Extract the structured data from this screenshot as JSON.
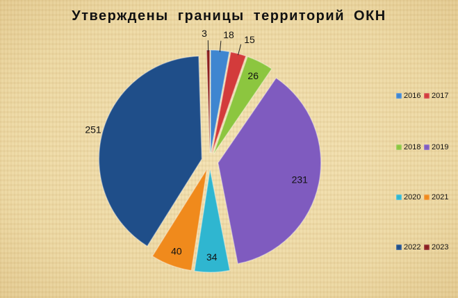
{
  "chart_data": {
    "type": "pie",
    "title": "Утверждены границы территорий ОКН",
    "categories": [
      "2016",
      "2017",
      "2018",
      "2019",
      "2020",
      "2021",
      "2022",
      "2023"
    ],
    "values": [
      18,
      15,
      26,
      231,
      34,
      40,
      251,
      3
    ],
    "colors": [
      "#3f86d0",
      "#d33b3b",
      "#8cc63f",
      "#7f5bbf",
      "#2fb6d0",
      "#f08a1c",
      "#1f4e89",
      "#8b1e1e"
    ],
    "legend_position": "right",
    "exploded": true
  }
}
